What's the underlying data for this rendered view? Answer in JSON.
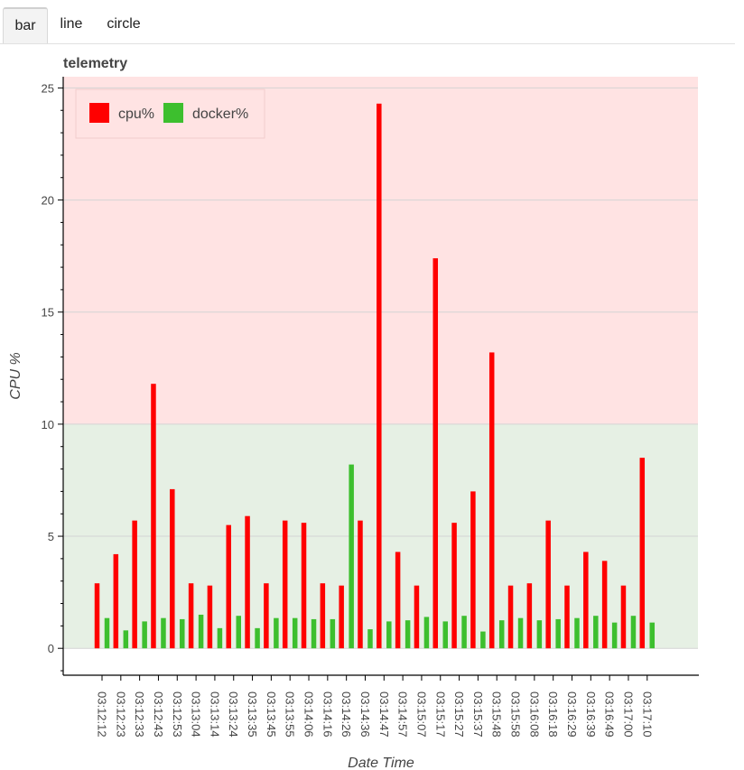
{
  "tabs": [
    {
      "label": "bar",
      "active": true
    },
    {
      "label": "line",
      "active": false
    },
    {
      "label": "circle",
      "active": false
    }
  ],
  "chart_data": {
    "type": "bar",
    "title": "telemetry",
    "xlabel": "Date Time",
    "ylabel": "CPU %",
    "ylim": [
      -1.2,
      25.5
    ],
    "yticks": [
      0,
      5,
      10,
      15,
      20,
      25
    ],
    "grid": true,
    "legend_position": "top-left",
    "bands": [
      {
        "from": 0,
        "to": 10,
        "color": "#e6f0e4"
      },
      {
        "from": 10,
        "to": 25.5,
        "color": "#ffe3e3"
      }
    ],
    "categories": [
      "03:12:12",
      "03:12:23",
      "03:12:33",
      "03:12:43",
      "03:12:53",
      "03:13:04",
      "03:13:14",
      "03:13:24",
      "03:13:35",
      "03:13:45",
      "03:13:55",
      "03:14:06",
      "03:14:16",
      "03:14:26",
      "03:14:36",
      "03:14:47",
      "03:14:57",
      "03:15:07",
      "03:15:17",
      "03:15:27",
      "03:15:37",
      "03:15:48",
      "03:15:58",
      "03:16:08",
      "03:16:18",
      "03:16:29",
      "03:16:39",
      "03:16:49",
      "03:17:00",
      "03:17:10"
    ],
    "series": [
      {
        "name": "cpu%",
        "color": "#ff0000",
        "values": [
          2.9,
          4.2,
          5.7,
          11.8,
          7.1,
          2.9,
          2.8,
          5.5,
          5.9,
          2.9,
          5.7,
          5.6,
          2.9,
          2.8,
          5.7,
          24.3,
          4.3,
          2.8,
          17.4,
          5.6,
          7.0,
          13.2,
          2.8,
          2.9,
          5.7,
          2.8,
          4.3,
          3.9,
          2.8,
          8.5
        ]
      },
      {
        "name": "docker%",
        "color": "#3dbf2e",
        "values": [
          1.35,
          0.8,
          1.2,
          1.35,
          1.3,
          1.5,
          0.9,
          1.45,
          0.9,
          1.35,
          1.35,
          1.3,
          1.3,
          8.2,
          0.85,
          1.2,
          1.25,
          1.4,
          1.2,
          1.45,
          0.75,
          1.25,
          1.35,
          1.25,
          1.3,
          1.35,
          1.45,
          1.15,
          1.45,
          1.15
        ]
      }
    ]
  }
}
